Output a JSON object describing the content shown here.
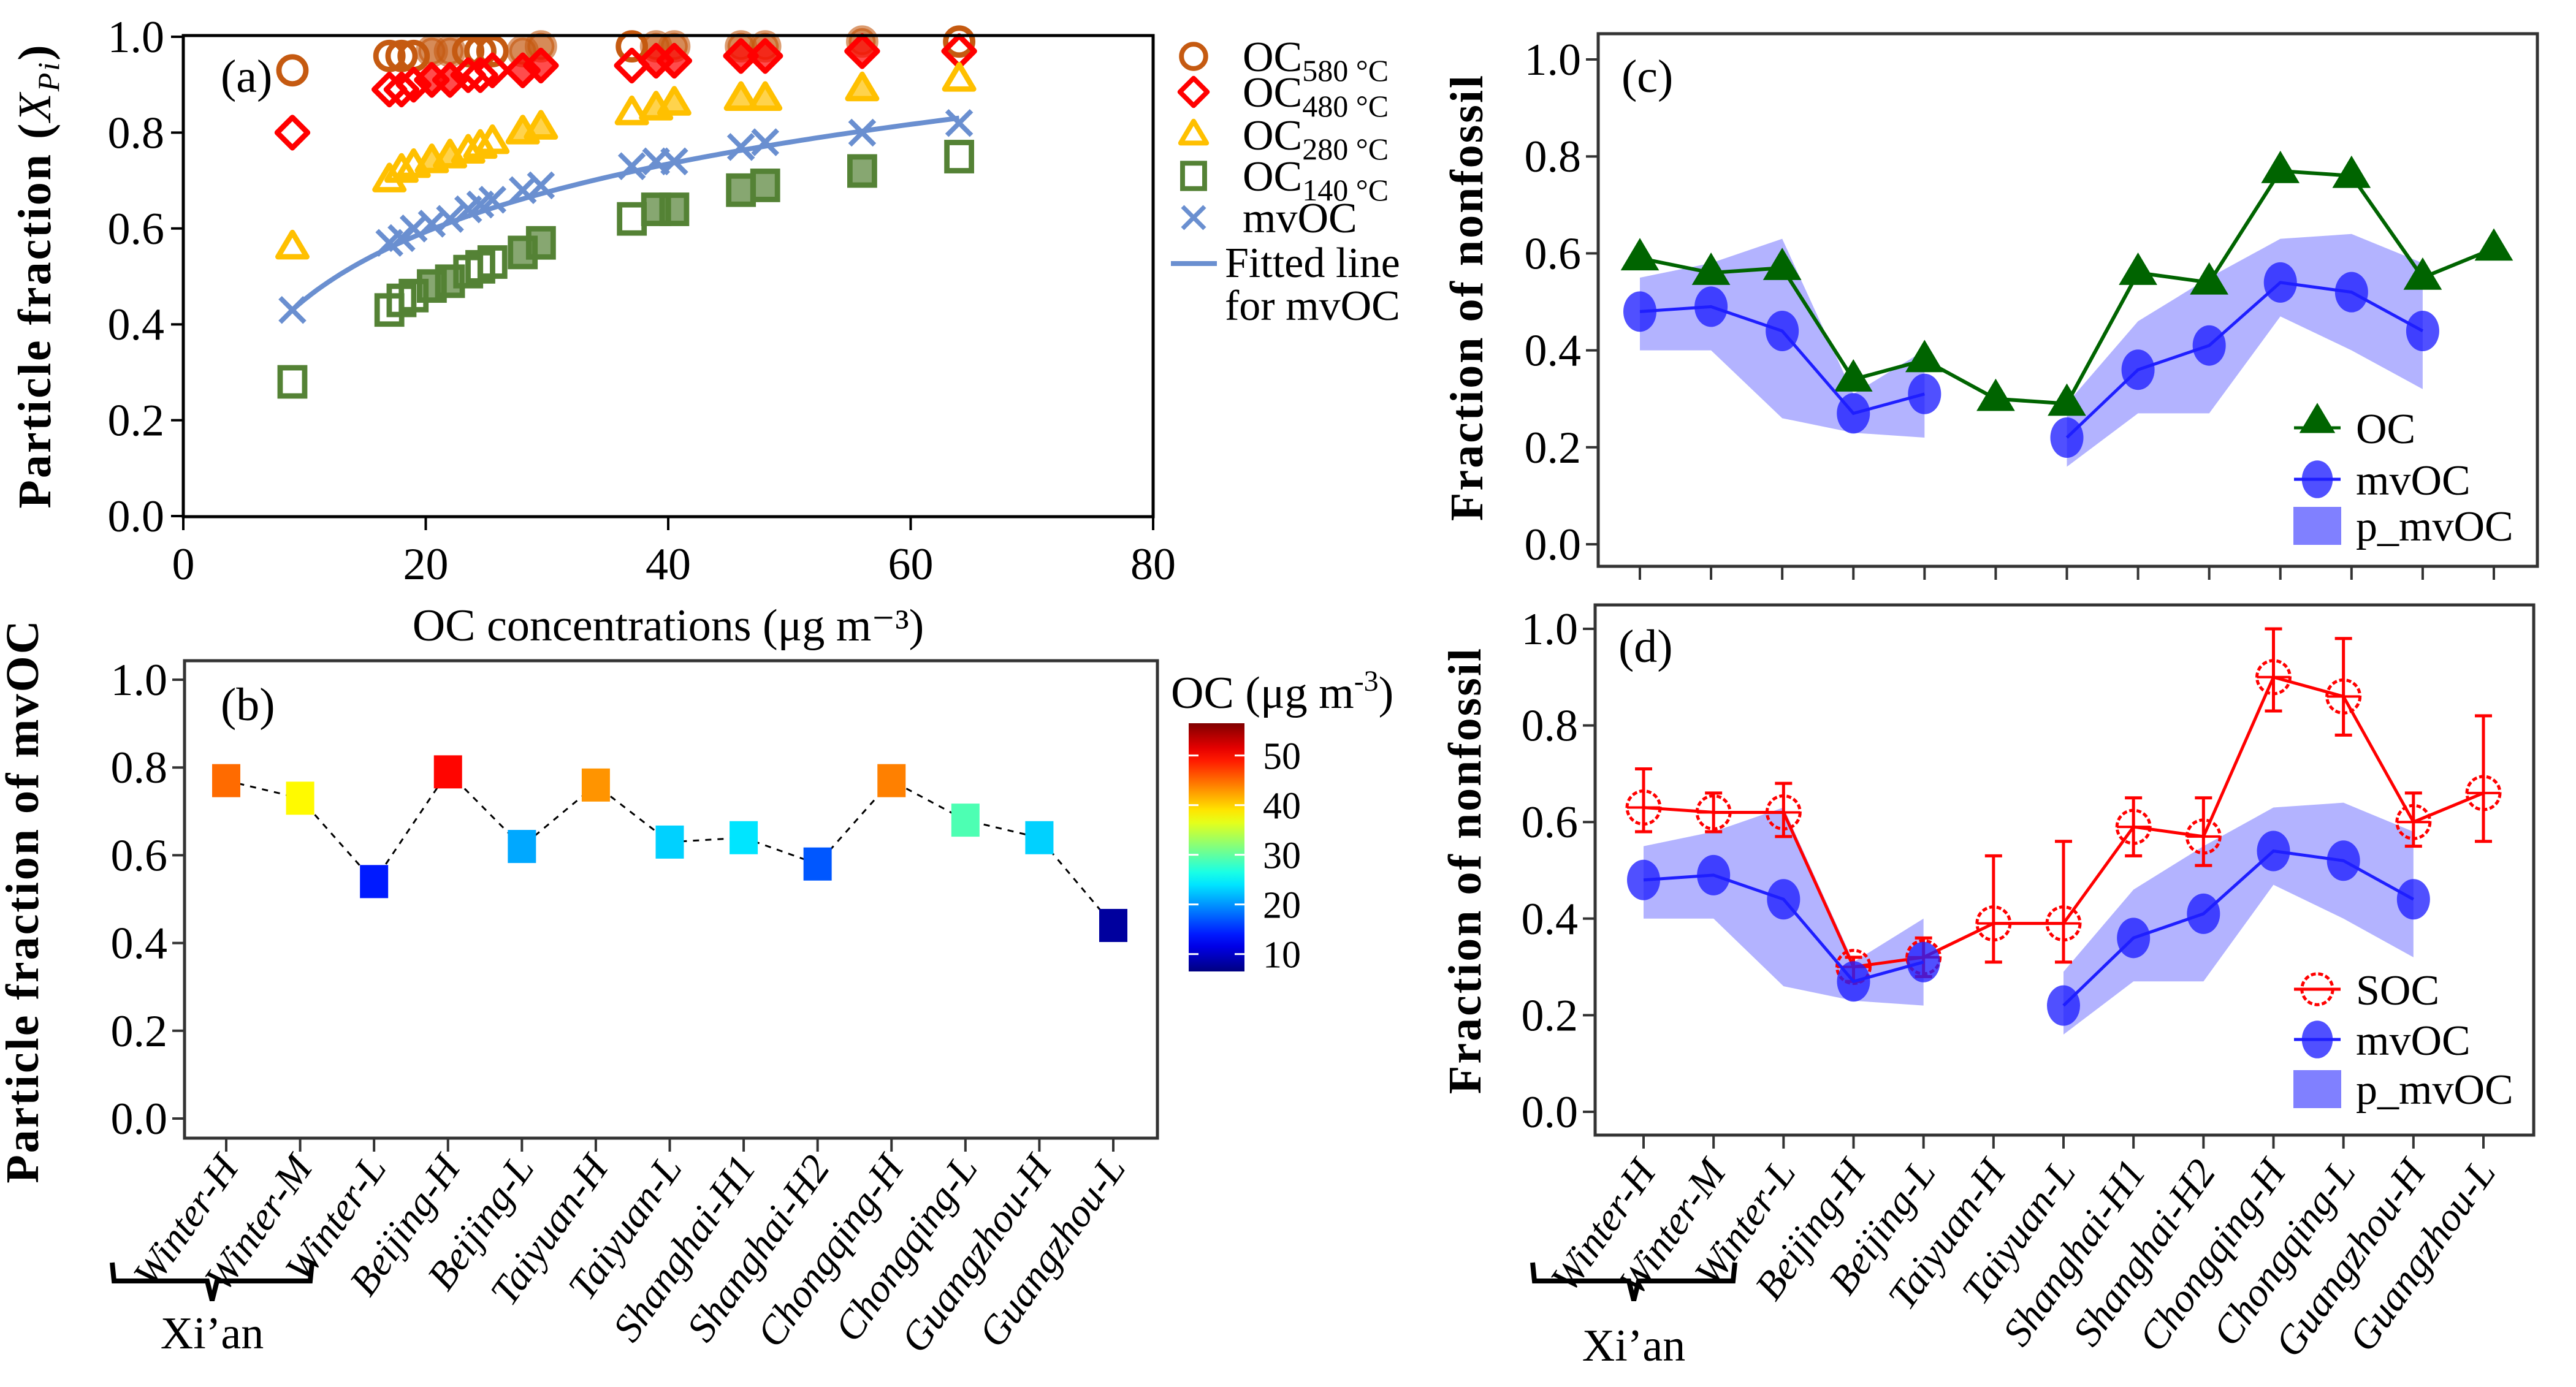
{
  "figure": {
    "categories": [
      "Winter-H",
      "Winter-M",
      "Winter-L",
      "Beijing-H",
      "Beijing-L",
      "Taiyuan-H",
      "Taiyuan-L",
      "Shanghai-H1",
      "Shanghai-H2",
      "Chongqing-H",
      "Chongqing-L",
      "Guangzhou-H",
      "Guangzhou-L"
    ],
    "group_bracket_label": "Xi’an",
    "colors": {
      "oc580": "#c55a11",
      "oc480": "#ff0000",
      "oc280": "#ffc000",
      "oc140": "#548235",
      "mvoc_a": "#6a8fd0",
      "oc_green": "#006400",
      "mvoc_blue": "#1f1fff",
      "p_mvoc": "#8080ff",
      "soc_red": "#ff0000"
    }
  },
  "chart_data": [
    {
      "panel": "a",
      "type": "scatter",
      "panel_label": "(a)",
      "xlabel": "OC concentrations (μg m⁻³)",
      "ylabel": "Particle fraction (X_Pi)",
      "ylabel_parts": {
        "main": "Particle fraction (",
        "italic": "X",
        "sub": "Pi",
        "close": ")"
      },
      "xlim": [
        0,
        80
      ],
      "ylim": [
        0,
        1.0
      ],
      "xticks": [
        0,
        20,
        40,
        60,
        80
      ],
      "yticks": [
        0.0,
        0.2,
        0.4,
        0.6,
        0.8,
        1.0
      ],
      "ytick_labels": [
        "0.0",
        "0.2",
        "0.4",
        "0.6",
        "0.8",
        "1.0"
      ],
      "x": [
        9,
        17,
        18,
        19,
        20.5,
        22,
        23.5,
        24.5,
        25.5,
        28,
        29.5,
        37,
        39,
        40.5,
        46,
        48,
        56,
        64
      ],
      "filled": [
        false,
        false,
        false,
        false,
        true,
        true,
        false,
        false,
        false,
        true,
        true,
        false,
        true,
        true,
        true,
        true,
        true,
        false
      ],
      "series": [
        {
          "name": "OC580 °C",
          "key": "oc580",
          "marker": "circle",
          "values": [
            0.93,
            0.96,
            0.96,
            0.96,
            0.97,
            0.97,
            0.97,
            0.97,
            0.97,
            0.97,
            0.98,
            0.98,
            0.98,
            0.98,
            0.98,
            0.98,
            0.99,
            0.99
          ]
        },
        {
          "name": "OC480 °C",
          "key": "oc480",
          "marker": "diamond",
          "values": [
            0.8,
            0.89,
            0.89,
            0.9,
            0.91,
            0.91,
            0.92,
            0.92,
            0.93,
            0.93,
            0.94,
            0.94,
            0.95,
            0.95,
            0.96,
            0.96,
            0.97,
            0.97
          ]
        },
        {
          "name": "OC280 °C",
          "key": "oc280",
          "marker": "triangle",
          "values": [
            0.56,
            0.7,
            0.72,
            0.73,
            0.74,
            0.75,
            0.76,
            0.77,
            0.78,
            0.8,
            0.81,
            0.84,
            0.85,
            0.86,
            0.87,
            0.87,
            0.89,
            0.91
          ]
        },
        {
          "name": "OC140 °C",
          "key": "oc140",
          "marker": "square",
          "values": [
            0.28,
            0.43,
            0.45,
            0.46,
            0.48,
            0.49,
            0.51,
            0.52,
            0.53,
            0.55,
            0.57,
            0.62,
            0.64,
            0.64,
            0.68,
            0.69,
            0.72,
            0.75
          ]
        },
        {
          "name": "mvOC",
          "key": "mvoc_a",
          "marker": "x",
          "values": [
            0.43,
            0.57,
            0.58,
            0.6,
            0.61,
            0.62,
            0.64,
            0.65,
            0.66,
            0.68,
            0.69,
            0.73,
            0.74,
            0.74,
            0.77,
            0.78,
            0.8,
            0.82
          ]
        }
      ],
      "fitted_line": {
        "name": "Fitted line for mvOC",
        "model": "y = a + b·ln(x)",
        "a": -0.018,
        "b": 0.204,
        "x_range": [
          9,
          64
        ]
      },
      "legend": [
        {
          "label": "OC",
          "sub": "580 °C",
          "marker": "circle",
          "key": "oc580"
        },
        {
          "label": "OC",
          "sub": "480 °C",
          "marker": "diamond",
          "key": "oc480"
        },
        {
          "label": "OC",
          "sub": "280 °C",
          "marker": "triangle",
          "key": "oc280"
        },
        {
          "label": "OC",
          "sub": "140 °C",
          "marker": "square",
          "key": "oc140"
        },
        {
          "label": "mvOC",
          "sub": "",
          "marker": "x",
          "key": "mvoc_a"
        },
        {
          "label": "Fitted line",
          "label2": "for mvOC",
          "sub": "",
          "marker": "line",
          "key": "mvoc_a"
        }
      ],
      "legend_position": "right-outside"
    },
    {
      "panel": "b",
      "type": "scatter",
      "panel_label": "(b)",
      "ylabel": "Particle fraction of mvOC",
      "ylim": [
        -0.05,
        1.05
      ],
      "yticks": [
        0.0,
        0.2,
        0.4,
        0.6,
        0.8,
        1.0
      ],
      "ytick_labels": [
        "0.0",
        "0.2",
        "0.4",
        "0.6",
        "0.8",
        "1.0"
      ],
      "values": [
        0.77,
        0.73,
        0.54,
        0.79,
        0.62,
        0.76,
        0.63,
        0.64,
        0.58,
        0.77,
        0.68,
        0.64,
        0.44
      ],
      "oc_color_values": [
        45,
        38,
        14,
        50,
        21,
        43,
        23,
        24,
        17,
        44,
        29,
        23,
        8
      ],
      "colorbar": {
        "title": "OC (μg m⁻³)",
        "title_main": "OC (μg m",
        "title_sup": "-3",
        "title_close": ")",
        "range": [
          6.5,
          56.5
        ],
        "ticks": [
          10,
          20,
          30,
          40,
          50
        ],
        "colormap": "jet"
      },
      "connector": "dashed black line"
    },
    {
      "panel": "c",
      "type": "line",
      "panel_label": "(c)",
      "ylabel": "Fraction of nonfossil",
      "ylim": [
        -0.05,
        1.05
      ],
      "yticks": [
        0.0,
        0.2,
        0.4,
        0.6,
        0.8,
        1.0
      ],
      "ytick_labels": [
        "0.0",
        "0.2",
        "0.4",
        "0.6",
        "0.8",
        "1.0"
      ],
      "series": [
        {
          "name": "OC",
          "key": "oc_green",
          "marker": "triangle",
          "values": [
            0.59,
            0.56,
            0.57,
            0.34,
            0.38,
            0.3,
            0.29,
            0.56,
            0.54,
            0.77,
            0.76,
            0.55,
            0.61
          ]
        },
        {
          "name": "mvOC",
          "key": "mvoc_blue",
          "marker": "circle",
          "values": [
            0.48,
            0.49,
            0.44,
            0.27,
            0.31,
            null,
            0.22,
            0.36,
            0.41,
            0.54,
            0.52,
            0.44,
            null
          ]
        }
      ],
      "band": {
        "name": "p_mvOC",
        "key": "p_mvoc",
        "lower": [
          0.4,
          0.4,
          0.26,
          0.23,
          0.22,
          null,
          0.16,
          0.27,
          0.27,
          0.47,
          0.4,
          0.32,
          null
        ],
        "upper": [
          0.55,
          0.58,
          0.63,
          0.31,
          0.4,
          null,
          0.29,
          0.46,
          0.55,
          0.63,
          0.64,
          0.58,
          null
        ]
      },
      "legend": [
        {
          "label": "OC",
          "marker": "triangle",
          "key": "oc_green"
        },
        {
          "label": "mvOC",
          "marker": "circle",
          "key": "mvoc_blue"
        },
        {
          "label": "p_mvOC",
          "marker": "band",
          "key": "p_mvoc"
        }
      ],
      "legend_position": "bottom-right"
    },
    {
      "panel": "d",
      "type": "line",
      "panel_label": "(d)",
      "ylabel": "Fraction of nonfossil",
      "ylim": [
        -0.05,
        1.05
      ],
      "yticks": [
        0.0,
        0.2,
        0.4,
        0.6,
        0.8,
        1.0
      ],
      "ytick_labels": [
        "0.0",
        "0.2",
        "0.4",
        "0.6",
        "0.8",
        "1.0"
      ],
      "series": [
        {
          "name": "SOC",
          "key": "soc_red",
          "marker": "open-circle",
          "values": [
            0.63,
            0.62,
            0.62,
            0.3,
            0.32,
            0.39,
            0.39,
            0.59,
            0.57,
            0.9,
            0.86,
            0.6,
            0.66
          ],
          "err_low": [
            0.58,
            0.58,
            0.57,
            0.27,
            0.28,
            0.31,
            0.31,
            0.53,
            0.51,
            0.83,
            0.78,
            0.55,
            0.56
          ],
          "err_high": [
            0.71,
            0.66,
            0.68,
            0.32,
            0.36,
            0.53,
            0.56,
            0.65,
            0.65,
            1.0,
            0.98,
            0.66,
            0.82
          ]
        },
        {
          "name": "mvOC",
          "key": "mvoc_blue",
          "marker": "circle",
          "values": [
            0.48,
            0.49,
            0.44,
            0.27,
            0.31,
            null,
            0.22,
            0.36,
            0.41,
            0.54,
            0.52,
            0.44,
            null
          ]
        }
      ],
      "band": {
        "name": "p_mvOC",
        "key": "p_mvoc",
        "lower": [
          0.4,
          0.4,
          0.26,
          0.23,
          0.22,
          null,
          0.16,
          0.27,
          0.27,
          0.47,
          0.4,
          0.32,
          null
        ],
        "upper": [
          0.55,
          0.58,
          0.63,
          0.31,
          0.4,
          null,
          0.29,
          0.46,
          0.55,
          0.63,
          0.64,
          0.58,
          null
        ]
      },
      "legend": [
        {
          "label": "SOC",
          "marker": "open-circle",
          "key": "soc_red"
        },
        {
          "label": "mvOC",
          "marker": "circle",
          "key": "mvoc_blue"
        },
        {
          "label": "p_mvOC",
          "marker": "band",
          "key": "p_mvoc"
        }
      ],
      "legend_position": "bottom-right"
    }
  ]
}
